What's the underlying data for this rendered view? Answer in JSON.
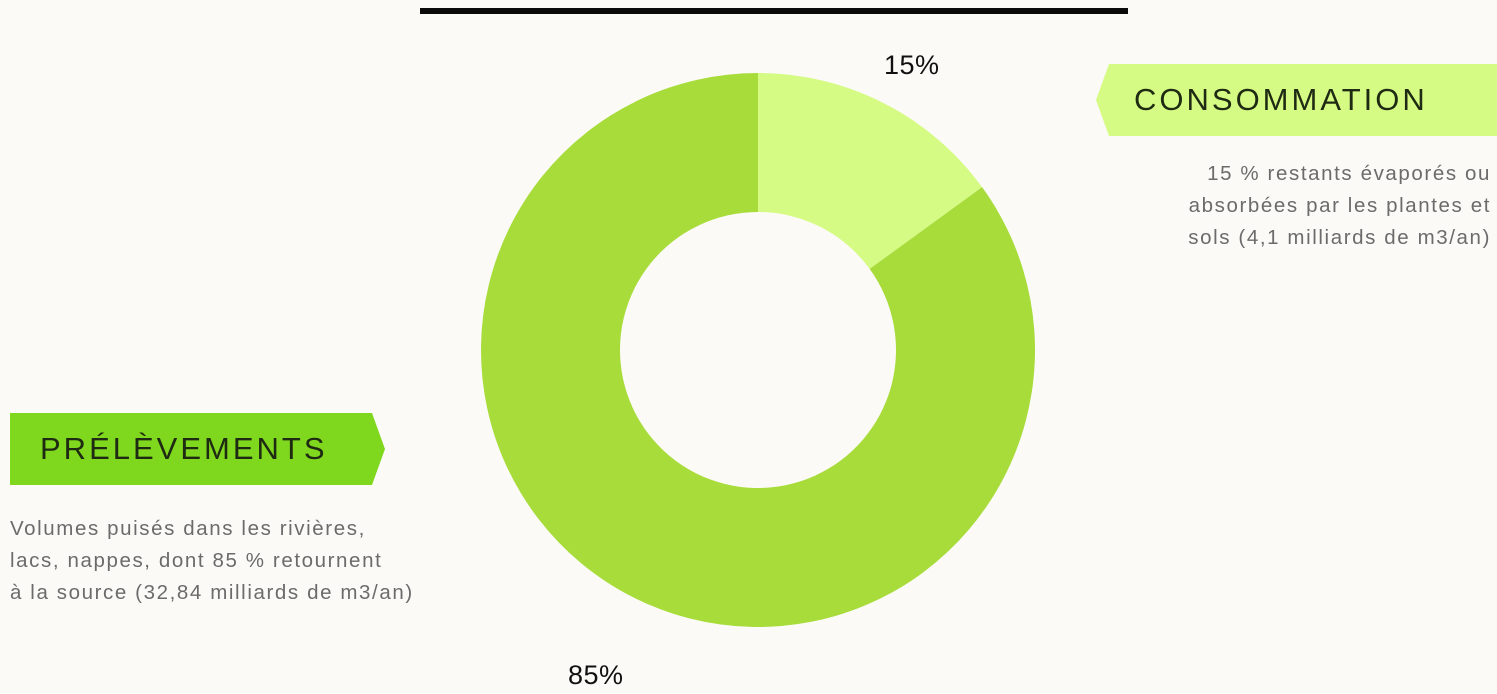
{
  "chart_data": {
    "type": "pie",
    "donut": true,
    "title": "",
    "categories": [
      "CONSOMMATION",
      "PRÉLÈVEMENTS"
    ],
    "values": [
      15,
      85
    ],
    "value_labels": [
      "15%",
      "85%"
    ],
    "colors": [
      "#d5fb85",
      "#a7dc3b"
    ],
    "start_angle_deg": 0,
    "direction": "clockwise"
  },
  "top_rule_color": "#0a0a0a",
  "legend": {
    "consommation": {
      "label": "CONSOMMATION",
      "ribbon_color": "#d5fb85",
      "description_lines": [
        "15 % restants évaporés ou",
        "absorbées par les plantes et",
        "sols (4,1 milliards de m3/an)"
      ]
    },
    "prelevements": {
      "label": "PRÉLÈVEMENTS",
      "ribbon_color": "#7fd81e",
      "description_lines": [
        "Volumes puisés dans les rivières,",
        "lacs, nappes, dont 85 % retournent",
        "à la source (32,84 milliards de m3/an)"
      ]
    }
  }
}
